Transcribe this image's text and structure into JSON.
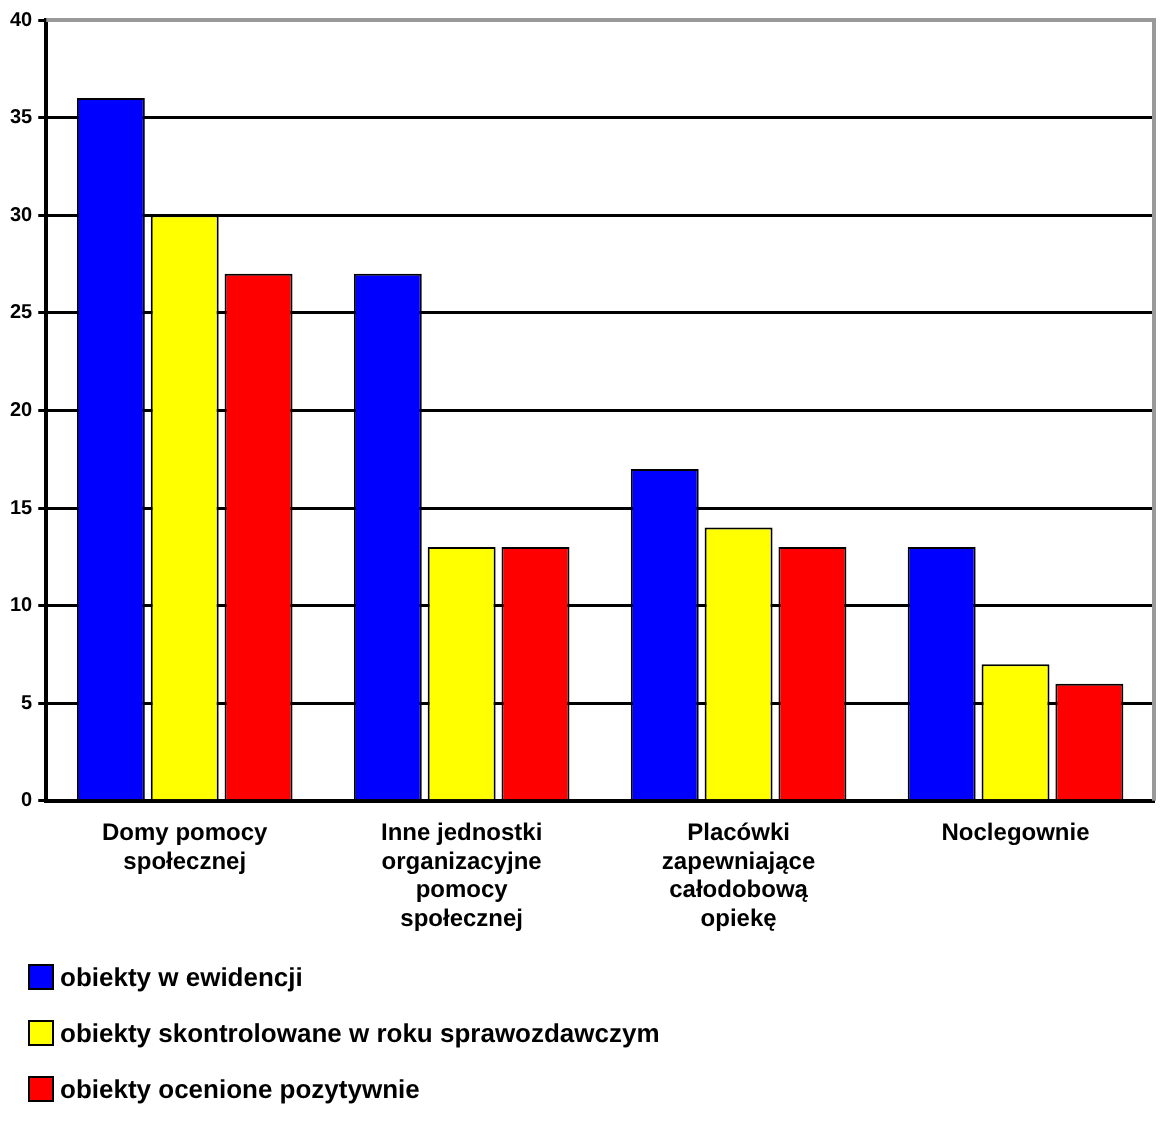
{
  "chart_data": {
    "type": "bar",
    "categories": [
      "Domy pomocy społecznej",
      "Inne jednostki organizacyjne pomocy społecznej",
      "Placówki zapewniające całodobową opiekę",
      "Noclegownie"
    ],
    "series": [
      {
        "name": "obiekty w ewidencji",
        "color": "#0000ff",
        "values": [
          36,
          27,
          17,
          13
        ]
      },
      {
        "name": "obiekty skontrolowane w roku sprawozdawczym",
        "color": "#ffff00",
        "values": [
          30,
          13,
          14,
          7
        ]
      },
      {
        "name": "obiekty ocenione pozytywnie",
        "color": "#ff0000",
        "values": [
          27,
          13,
          13,
          6
        ]
      }
    ],
    "ylim": [
      0,
      40
    ],
    "yticks": [
      0,
      5,
      10,
      15,
      20,
      25,
      30,
      35,
      40
    ],
    "grid": "y",
    "legend": "bottom"
  }
}
